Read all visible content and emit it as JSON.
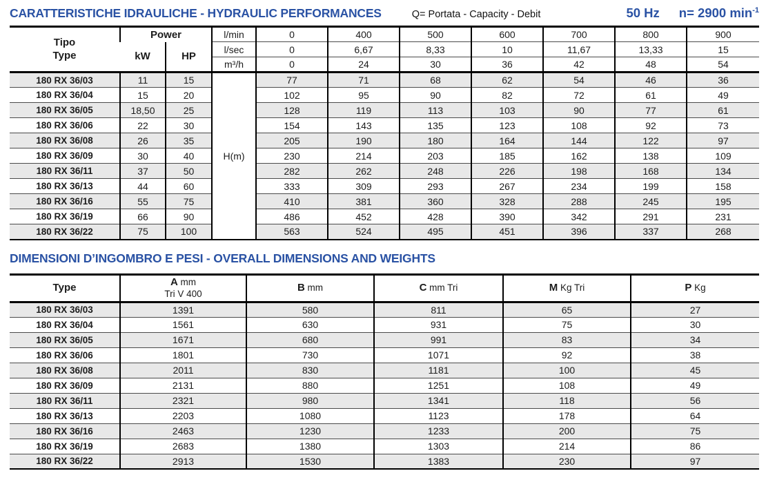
{
  "header": {
    "title": "CARATTERISTICHE IDRAULICHE - HYDRAULIC PERFORMANCES",
    "subtitle": "Q= Portata - Capacity - Debit",
    "frequency": "50 Hz",
    "speed": "n= 2900 min",
    "speed_sup": "-1"
  },
  "hydraulic_table": {
    "tipo_label": "Tipo",
    "type_label": "Type",
    "power_label": "Power",
    "kw_label": "kW",
    "hp_label": "HP",
    "flow_rows": [
      {
        "unit": "l/min",
        "values": [
          "0",
          "400",
          "500",
          "600",
          "700",
          "800",
          "900"
        ]
      },
      {
        "unit": "l/sec",
        "values": [
          "0",
          "6,67",
          "8,33",
          "10",
          "11,67",
          "13,33",
          "15"
        ]
      },
      {
        "unit": "m³/h",
        "values": [
          "0",
          "24",
          "30",
          "36",
          "42",
          "48",
          "54"
        ]
      }
    ],
    "head_unit_label": "H(m)",
    "rows": [
      {
        "type": "180 RX 36/03",
        "kw": "11",
        "hp": "15",
        "h": [
          "77",
          "71",
          "68",
          "62",
          "54",
          "46",
          "36"
        ]
      },
      {
        "type": "180 RX 36/04",
        "kw": "15",
        "hp": "20",
        "h": [
          "102",
          "95",
          "90",
          "82",
          "72",
          "61",
          "49"
        ]
      },
      {
        "type": "180 RX 36/05",
        "kw": "18,50",
        "hp": "25",
        "h": [
          "128",
          "119",
          "113",
          "103",
          "90",
          "77",
          "61"
        ]
      },
      {
        "type": "180 RX 36/06",
        "kw": "22",
        "hp": "30",
        "h": [
          "154",
          "143",
          "135",
          "123",
          "108",
          "92",
          "73"
        ]
      },
      {
        "type": "180 RX 36/08",
        "kw": "26",
        "hp": "35",
        "h": [
          "205",
          "190",
          "180",
          "164",
          "144",
          "122",
          "97"
        ]
      },
      {
        "type": "180 RX 36/09",
        "kw": "30",
        "hp": "40",
        "h": [
          "230",
          "214",
          "203",
          "185",
          "162",
          "138",
          "109"
        ]
      },
      {
        "type": "180 RX 36/11",
        "kw": "37",
        "hp": "50",
        "h": [
          "282",
          "262",
          "248",
          "226",
          "198",
          "168",
          "134"
        ]
      },
      {
        "type": "180 RX 36/13",
        "kw": "44",
        "hp": "60",
        "h": [
          "333",
          "309",
          "293",
          "267",
          "234",
          "199",
          "158"
        ]
      },
      {
        "type": "180 RX 36/16",
        "kw": "55",
        "hp": "75",
        "h": [
          "410",
          "381",
          "360",
          "328",
          "288",
          "245",
          "195"
        ]
      },
      {
        "type": "180 RX 36/19",
        "kw": "66",
        "hp": "90",
        "h": [
          "486",
          "452",
          "428",
          "390",
          "342",
          "291",
          "231"
        ]
      },
      {
        "type": "180 RX 36/22",
        "kw": "75",
        "hp": "100",
        "h": [
          "563",
          "524",
          "495",
          "451",
          "396",
          "337",
          "268"
        ]
      }
    ]
  },
  "dimensions_section": {
    "title": "DIMENSIONI D’INGOMBRO E PESI - OVERALL DIMENSIONS AND WEIGHTS"
  },
  "dimensions_table": {
    "type_header": "Type",
    "headers": [
      {
        "letter": "A",
        "unit": " mm",
        "sub": "Tri V 400"
      },
      {
        "letter": "B",
        "unit": " mm",
        "sub": ""
      },
      {
        "letter": "C",
        "unit": " mm Tri",
        "sub": ""
      },
      {
        "letter": "M",
        "unit": " Kg Tri",
        "sub": ""
      },
      {
        "letter": "P",
        "unit": " Kg",
        "sub": ""
      }
    ],
    "rows": [
      {
        "type": "180 RX 36/03",
        "values": [
          "1391",
          "580",
          "811",
          "65",
          "27"
        ]
      },
      {
        "type": "180 RX 36/04",
        "values": [
          "1561",
          "630",
          "931",
          "75",
          "30"
        ]
      },
      {
        "type": "180 RX 36/05",
        "values": [
          "1671",
          "680",
          "991",
          "83",
          "34"
        ]
      },
      {
        "type": "180 RX 36/06",
        "values": [
          "1801",
          "730",
          "1071",
          "92",
          "38"
        ]
      },
      {
        "type": "180 RX 36/08",
        "values": [
          "2011",
          "830",
          "1181",
          "100",
          "45"
        ]
      },
      {
        "type": "180 RX 36/09",
        "values": [
          "2131",
          "880",
          "1251",
          "108",
          "49"
        ]
      },
      {
        "type": "180 RX 36/11",
        "values": [
          "2321",
          "980",
          "1341",
          "118",
          "56"
        ]
      },
      {
        "type": "180 RX 36/13",
        "values": [
          "2203",
          "1080",
          "1123",
          "178",
          "64"
        ]
      },
      {
        "type": "180 RX 36/16",
        "values": [
          "2463",
          "1230",
          "1233",
          "200",
          "75"
        ]
      },
      {
        "type": "180 RX 36/19",
        "values": [
          "2683",
          "1380",
          "1303",
          "214",
          "86"
        ]
      },
      {
        "type": "180 RX 36/22",
        "values": [
          "2913",
          "1530",
          "1383",
          "230",
          "97"
        ]
      }
    ]
  },
  "colors": {
    "accent_blue": "#2a52a4",
    "row_shade": "#e8e8e8",
    "border_black": "#000000"
  }
}
